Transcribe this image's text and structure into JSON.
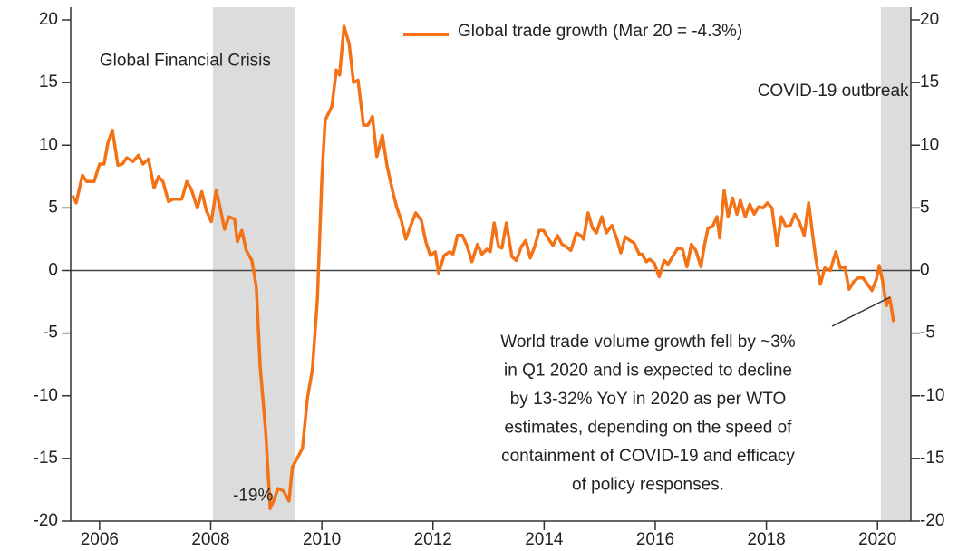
{
  "chart_data": {
    "type": "line",
    "xlim": [
      2005.48,
      2020.6
    ],
    "xticks": [
      2006,
      2008,
      2010,
      2012,
      2014,
      2016,
      2018,
      2020
    ],
    "ylim": [
      -20,
      20
    ],
    "yticks": [
      -20,
      -15,
      -10,
      -5,
      0,
      5,
      10,
      15,
      20
    ],
    "y2lim": [
      -20,
      20
    ],
    "y2ticks": [
      -20,
      -15,
      -10,
      -5,
      0,
      5,
      10,
      15,
      20
    ],
    "shaded_periods": [
      [
        2008.04,
        2009.51
      ],
      [
        2020.06,
        2020.6
      ]
    ],
    "annotations": [
      {
        "text": "Global Financial Crisis",
        "x": 2006.0,
        "y": 16.7
      },
      {
        "text": "COVID-19 outbreak",
        "x": 2020.56,
        "y": 14.3
      },
      {
        "text": "-19%",
        "x": 2008.4,
        "y": -18.0
      }
    ],
    "note_lines": [
      "World trade volume growth fell by ~3%",
      "in Q1 2020 and is expected to decline",
      "by 13-32% YoY in 2020 as per WTO",
      "estimates, depending on the speed of",
      "containment of COVID-19 and efficacy",
      "of policy responses."
    ],
    "series": [
      {
        "name": "Global trade growth (Mar 20 = -4.3%)",
        "color": "#f47216",
        "x": [
          2005.51,
          2005.58,
          2005.69,
          2005.77,
          2005.9,
          2006.0,
          2006.08,
          2006.15,
          2006.23,
          2006.33,
          2006.41,
          2006.49,
          2006.6,
          2006.7,
          2006.78,
          2006.88,
          2006.98,
          2007.06,
          2007.14,
          2007.24,
          2007.32,
          2007.48,
          2007.57,
          2007.65,
          2007.76,
          2007.84,
          2007.92,
          2008.01,
          2008.1,
          2008.17,
          2008.25,
          2008.33,
          2008.43,
          2008.48,
          2008.56,
          2008.64,
          2008.74,
          2008.82,
          2008.89,
          2008.99,
          2009.07,
          2009.13,
          2009.21,
          2009.31,
          2009.41,
          2009.47,
          2009.65,
          2009.74,
          2009.83,
          2009.92,
          2010.0,
          2010.06,
          2010.18,
          2010.26,
          2010.32,
          2010.4,
          2010.49,
          2010.57,
          2010.65,
          2010.75,
          2010.83,
          2010.91,
          2010.99,
          2011.09,
          2011.17,
          2011.27,
          2011.35,
          2011.43,
          2011.51,
          2011.61,
          2011.69,
          2011.79,
          2011.87,
          2011.95,
          2012.04,
          2012.1,
          2012.2,
          2012.3,
          2012.36,
          2012.44,
          2012.53,
          2012.61,
          2012.7,
          2012.8,
          2012.88,
          2012.97,
          2013.03,
          2013.1,
          2013.18,
          2013.24,
          2013.32,
          2013.42,
          2013.5,
          2013.59,
          2013.67,
          2013.75,
          2013.83,
          2013.91,
          2013.99,
          2014.08,
          2014.16,
          2014.24,
          2014.32,
          2014.4,
          2014.48,
          2014.58,
          2014.66,
          2014.71,
          2014.79,
          2014.87,
          2014.94,
          2015.04,
          2015.12,
          2015.22,
          2015.31,
          2015.38,
          2015.46,
          2015.54,
          2015.62,
          2015.71,
          2015.76,
          2015.84,
          2015.9,
          2015.98,
          2016.07,
          2016.16,
          2016.23,
          2016.31,
          2016.41,
          2016.49,
          2016.57,
          2016.65,
          2016.73,
          2016.82,
          2016.88,
          2016.95,
          2017.03,
          2017.11,
          2017.16,
          2017.24,
          2017.31,
          2017.39,
          2017.47,
          2017.53,
          2017.62,
          2017.7,
          2017.78,
          2017.86,
          2017.94,
          2018.02,
          2018.1,
          2018.19,
          2018.27,
          2018.35,
          2018.43,
          2018.51,
          2018.59,
          2018.68,
          2018.76,
          2018.84,
          2018.89,
          2018.97,
          2019.05,
          2019.15,
          2019.25,
          2019.33,
          2019.41,
          2019.49,
          2019.57,
          2019.65,
          2019.74,
          2019.82,
          2019.9,
          2019.98,
          2020.03,
          2020.09,
          2020.16,
          2020.22,
          2020.29
        ],
        "values": [
          6.0,
          5.4,
          7.6,
          7.1,
          7.1,
          8.5,
          8.5,
          10.2,
          11.2,
          8.4,
          8.5,
          9.0,
          8.7,
          9.2,
          8.5,
          8.9,
          6.6,
          7.5,
          7.1,
          5.5,
          5.7,
          5.7,
          7.1,
          6.5,
          5.0,
          6.3,
          4.8,
          3.9,
          6.4,
          5.0,
          3.3,
          4.3,
          4.1,
          2.3,
          3.2,
          1.6,
          0.8,
          -1.3,
          -7.7,
          -12.9,
          -19.0,
          -18.4,
          -17.4,
          -17.6,
          -18.4,
          -15.7,
          -14.2,
          -10.2,
          -7.9,
          -2.3,
          7.3,
          12.0,
          13.1,
          16.0,
          15.6,
          19.5,
          18.1,
          15.0,
          15.2,
          11.6,
          11.6,
          12.3,
          9.1,
          10.8,
          8.4,
          6.4,
          5.0,
          4.0,
          2.5,
          3.7,
          4.6,
          4.0,
          2.3,
          1.2,
          1.5,
          -0.2,
          1.2,
          1.5,
          1.3,
          2.8,
          2.8,
          2.0,
          0.7,
          2.1,
          1.3,
          1.7,
          1.5,
          3.8,
          1.9,
          1.8,
          3.8,
          1.1,
          0.8,
          1.9,
          2.4,
          1.0,
          1.9,
          3.2,
          3.2,
          2.5,
          2.0,
          2.8,
          2.1,
          1.9,
          1.6,
          3.0,
          2.8,
          2.5,
          4.6,
          3.4,
          3.0,
          4.3,
          3.0,
          3.6,
          2.5,
          1.4,
          2.7,
          2.4,
          2.2,
          1.3,
          1.3,
          0.7,
          0.9,
          0.6,
          -0.5,
          0.8,
          0.5,
          1.1,
          1.8,
          1.7,
          0.3,
          2.1,
          1.6,
          0.3,
          1.9,
          3.4,
          3.5,
          4.3,
          2.6,
          6.4,
          4.3,
          5.8,
          4.5,
          5.6,
          4.3,
          5.3,
          4.5,
          5.1,
          5.0,
          5.4,
          5.0,
          2.0,
          4.3,
          3.5,
          3.6,
          4.5,
          3.9,
          2.8,
          5.4,
          2.6,
          0.9,
          -1.1,
          0.2,
          0.0,
          1.5,
          0.2,
          0.3,
          -1.5,
          -0.9,
          -0.6,
          -0.6,
          -1.1,
          -1.6,
          -0.7,
          0.4,
          -0.8,
          -2.8,
          -2.2,
          -4.1
        ]
      }
    ]
  }
}
